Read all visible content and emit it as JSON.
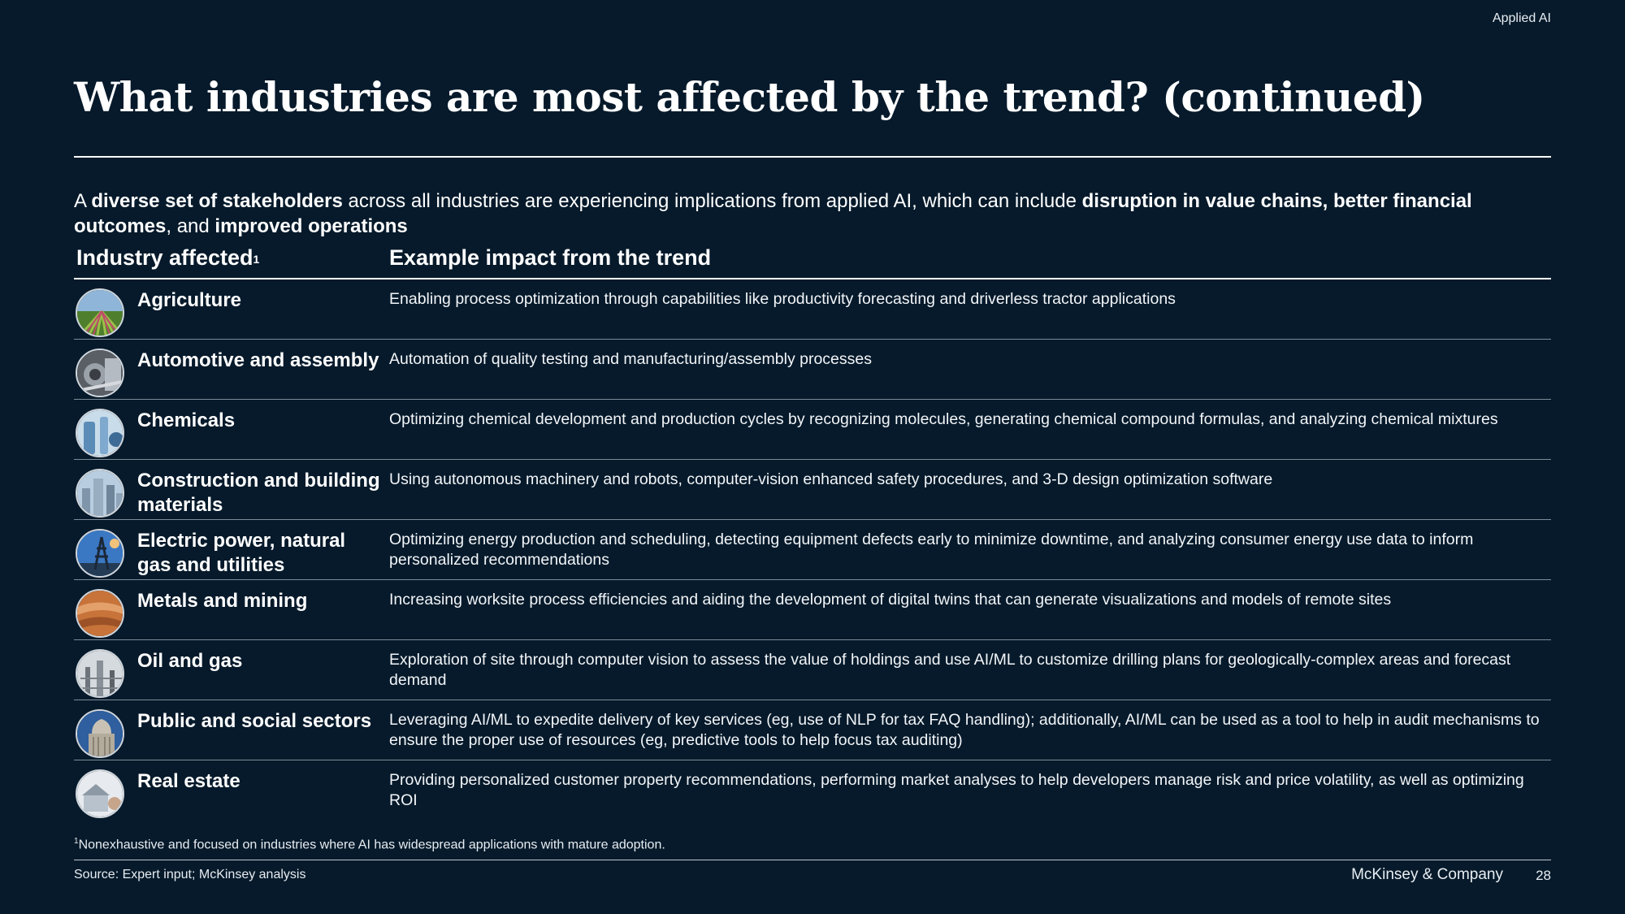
{
  "header": {
    "tag": "Applied AI",
    "title": "What industries are most affected by the trend? (continued)"
  },
  "intro": {
    "p1": "A ",
    "b1": "diverse set of stakeholders",
    "p2": " across all industries are experiencing implications from applied AI, which can include ",
    "b2": "disruption in value chains, better financial outcomes",
    "p3": ", and ",
    "b3": "improved operations"
  },
  "table": {
    "col_industry": "Industry affected",
    "col_industry_note": "1",
    "col_impact": "Example impact from the trend",
    "rows": [
      {
        "industry": "Agriculture",
        "impact": "Enabling process optimization through capabilities like productivity forecasting and driverless tractor applications"
      },
      {
        "industry": "Automotive and assembly",
        "impact": "Automation of quality testing and manufacturing/assembly processes"
      },
      {
        "industry": "Chemicals",
        "impact": "Optimizing chemical development and production cycles by recognizing molecules, generating chemical compound formulas, and analyzing chemical mixtures"
      },
      {
        "industry": "Construction and building materials",
        "impact": "Using autonomous machinery and robots, computer-vision enhanced safety procedures, and 3-D design optimization software"
      },
      {
        "industry": "Electric power, natural gas and utilities",
        "impact": "Optimizing energy production and scheduling, detecting equipment defects early to minimize downtime, and analyzing consumer energy use data to inform personalized recommendations"
      },
      {
        "industry": "Metals and mining",
        "impact": "Increasing worksite process efficiencies and aiding the development of digital twins that can generate visualizations and models of remote sites"
      },
      {
        "industry": "Oil and gas",
        "impact": "Exploration of site through computer vision to assess the value of holdings and use AI/ML to customize drilling plans for geologically-complex areas and forecast demand"
      },
      {
        "industry": "Public and social sectors",
        "impact": "Leveraging AI/ML to expedite delivery of key services (eg, use of NLP for tax FAQ handling); additionally, AI/ML can be used as a tool to help in audit mechanisms to ensure the proper use of resources (eg, predictive tools to help focus tax auditing)"
      },
      {
        "industry": "Real estate",
        "impact": "Providing personalized customer property recommendations, performing market analyses to help developers manage risk and price volatility, as well as optimizing ROI"
      }
    ]
  },
  "footnote": {
    "marker": "1",
    "text": "Nonexhaustive and focused on industries where AI has widespread applications with mature adoption."
  },
  "footer": {
    "source": "Source: Expert input; McKinsey analysis",
    "brand": "McKinsey & Company",
    "page": "28"
  }
}
